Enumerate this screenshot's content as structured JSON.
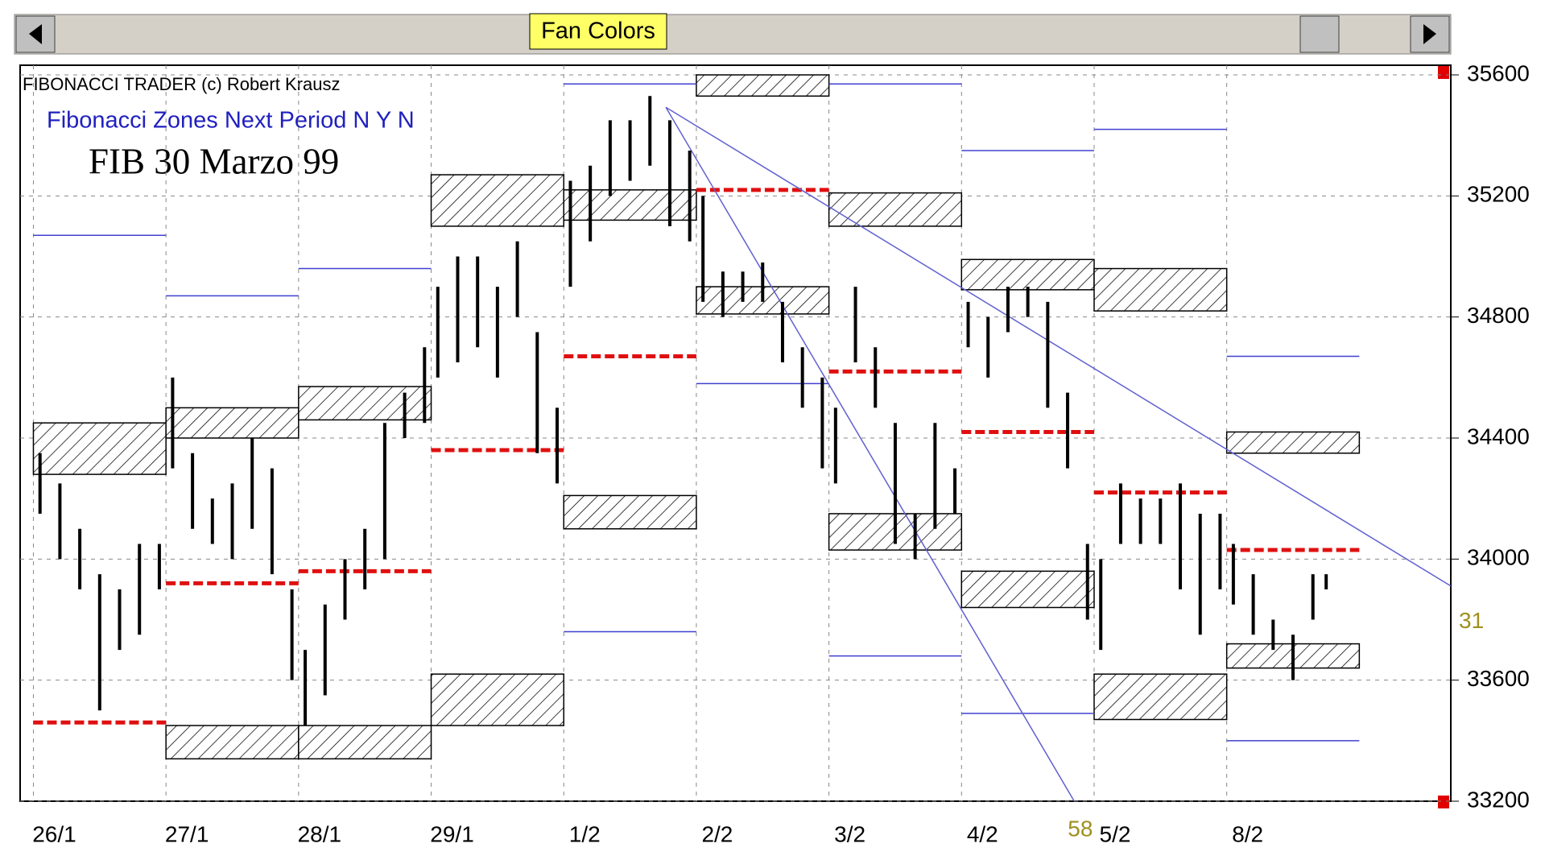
{
  "button": "Fan Colors",
  "chart_data": {
    "type": "ohlc",
    "title": "FIB 30 Marzo 99",
    "header": "FIBONACCI TRADER (c) Robert Krausz",
    "subtitle": "Fibonacci Zones Next Period N Y N",
    "xlim": [
      -0.1,
      10.69
    ],
    "xticks": [
      {
        "value": 0,
        "label": "26/1"
      },
      {
        "value": 1,
        "label": "27/1"
      },
      {
        "value": 2,
        "label": "28/1"
      },
      {
        "value": 3,
        "label": "29/1"
      },
      {
        "value": 4,
        "label": "1/2"
      },
      {
        "value": 5,
        "label": "2/2"
      },
      {
        "value": 6,
        "label": "3/2"
      },
      {
        "value": 7,
        "label": "4/2"
      },
      {
        "value": 8,
        "label": "5/2"
      },
      {
        "value": 9,
        "label": "8/2"
      }
    ],
    "ylim": [
      33200,
      35600
    ],
    "yticks": [
      33200,
      33600,
      34000,
      34400,
      34800,
      35200,
      35600
    ],
    "grid": true,
    "color": "#000000",
    "x": [
      0.05,
      0.2,
      0.35,
      0.5,
      0.65,
      0.8,
      0.95,
      1.05,
      1.2,
      1.35,
      1.5,
      1.65,
      1.8,
      1.95,
      2.05,
      2.2,
      2.35,
      2.5,
      2.65,
      2.8,
      2.95,
      3.05,
      3.2,
      3.35,
      3.5,
      3.65,
      3.8,
      3.95,
      4.05,
      4.2,
      4.35,
      4.5,
      4.65,
      4.8,
      4.95,
      5.05,
      5.2,
      5.35,
      5.5,
      5.65,
      5.8,
      5.95,
      6.05,
      6.2,
      6.35,
      6.5,
      6.65,
      6.8,
      6.95,
      7.05,
      7.2,
      7.35,
      7.5,
      7.65,
      7.8,
      7.95,
      8.05,
      8.2,
      8.35,
      8.5,
      8.65,
      8.8,
      8.95,
      9.05,
      9.2,
      9.35,
      9.5,
      9.65,
      9.75
    ],
    "high": [
      34350,
      34250,
      34100,
      33950,
      33900,
      34050,
      34050,
      34600,
      34350,
      34200,
      34250,
      34400,
      34300,
      33900,
      33700,
      33850,
      34000,
      34100,
      34450,
      34550,
      34700,
      34900,
      35000,
      35000,
      34900,
      35050,
      34750,
      34500,
      35250,
      35300,
      35450,
      35450,
      35530,
      35450,
      35350,
      35200,
      34950,
      34950,
      34980,
      34850,
      34700,
      34600,
      34500,
      34900,
      34700,
      34450,
      34150,
      34450,
      34300,
      34850,
      34800,
      34900,
      34900,
      34850,
      34550,
      34050,
      34000,
      34250,
      34200,
      34200,
      34250,
      34150,
      34150,
      34050,
      33950,
      33800,
      33750,
      33950,
      33950
    ],
    "low": [
      34150,
      34000,
      33900,
      33500,
      33700,
      33750,
      33900,
      34300,
      34100,
      34050,
      34000,
      34100,
      33950,
      33600,
      33450,
      33550,
      33800,
      33900,
      34000,
      34400,
      34450,
      34600,
      34650,
      34700,
      34600,
      34800,
      34350,
      34250,
      34900,
      35050,
      35200,
      35250,
      35300,
      35100,
      35050,
      34850,
      34800,
      34850,
      34850,
      34650,
      34500,
      34300,
      34250,
      34650,
      34500,
      34050,
      34000,
      34100,
      34150,
      34700,
      34600,
      34750,
      34800,
      34500,
      34300,
      33800,
      33700,
      34050,
      34050,
      34050,
      33900,
      33750,
      33900,
      33850,
      33750,
      33700,
      33600,
      33800,
      33900
    ],
    "zones": {
      "x": [
        0,
        1,
        1,
        2,
        2,
        3,
        3,
        4,
        4,
        5,
        5,
        6,
        6,
        7,
        7,
        8,
        8,
        9,
        9
      ],
      "low": [
        34280,
        34400,
        33340,
        34460,
        33340,
        35100,
        33450,
        35120,
        34100,
        35530,
        34810,
        35100,
        34030,
        34890,
        33840,
        34820,
        33470,
        34350,
        33640
      ],
      "high": [
        34450,
        34500,
        33450,
        34570,
        33450,
        35270,
        33620,
        35220,
        34210,
        35600,
        34900,
        35210,
        34150,
        34990,
        33960,
        34960,
        33620,
        34420,
        33720
      ]
    },
    "red_levels": {
      "x": [
        0,
        1,
        2,
        3,
        4,
        5,
        6,
        7,
        8,
        9
      ],
      "values": [
        33460,
        33920,
        33960,
        34360,
        34670,
        35220,
        34620,
        34420,
        34220,
        34030
      ]
    },
    "blue_levels": {
      "x": [
        0,
        1,
        2,
        4,
        4,
        5,
        6,
        6,
        7,
        7,
        8,
        9,
        9
      ],
      "values": [
        35070,
        34870,
        34960,
        35570,
        33760,
        34580,
        35570,
        33680,
        35350,
        33490,
        35420,
        34670,
        33400
      ]
    },
    "fan": {
      "x": [
        4.77,
        10.69
      ],
      "values": [
        35493,
        33911
      ],
      "x2": [
        4.77,
        7.85
      ],
      "values2": [
        35493,
        33200
      ]
    },
    "annotations": [
      "31",
      "58"
    ]
  }
}
